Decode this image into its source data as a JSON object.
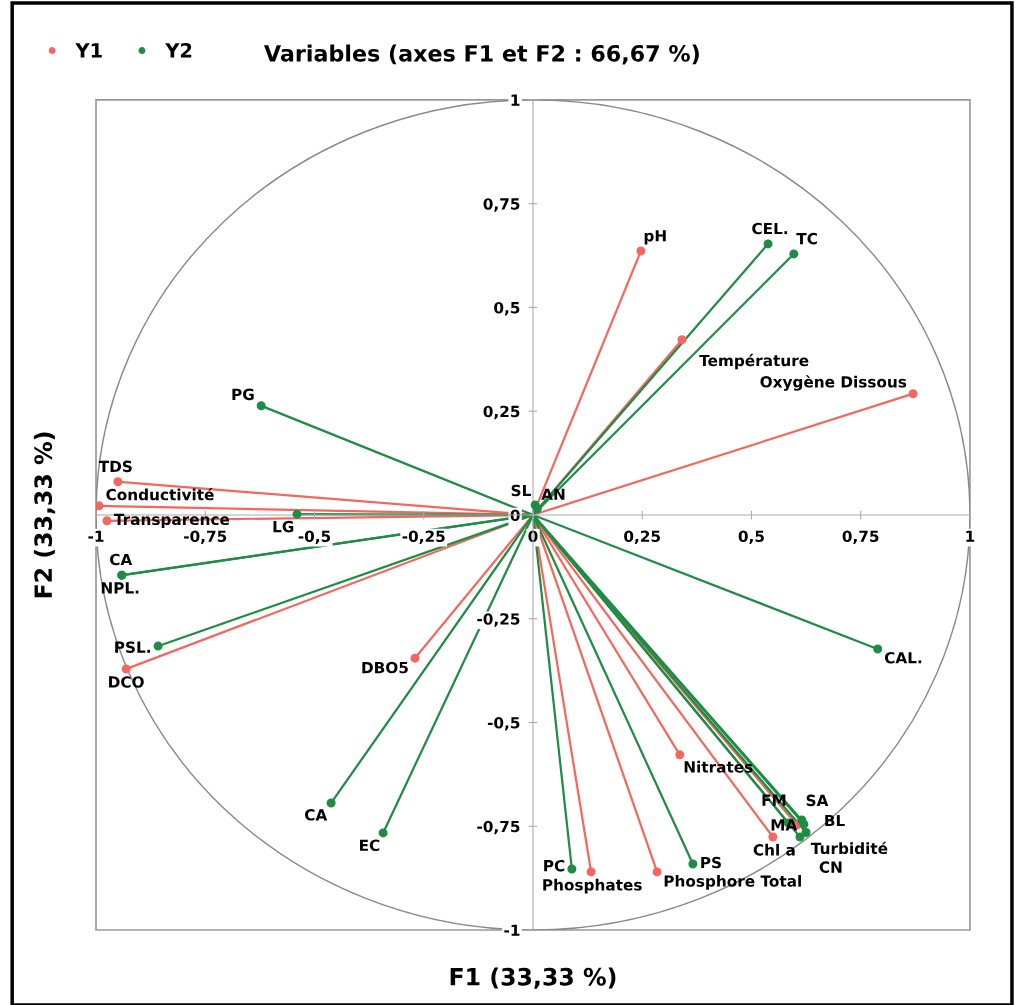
{
  "chart_data": {
    "type": "scatter",
    "title": "Variables (axes F1 et F2 : 66,67 %)",
    "xlabel": "F1 (33,33 %)",
    "ylabel": "F2 (33,33 %)",
    "xlim": [
      -1,
      1
    ],
    "ylim": [
      -1,
      1
    ],
    "xticks": [
      {
        "value": -1,
        "label": "-1"
      },
      {
        "value": -0.75,
        "label": "-0,75"
      },
      {
        "value": -0.5,
        "label": "-0,5"
      },
      {
        "value": -0.25,
        "label": "-0,25"
      },
      {
        "value": 0,
        "label": "0"
      },
      {
        "value": 0.25,
        "label": "0,25"
      },
      {
        "value": 0.5,
        "label": "0,5"
      },
      {
        "value": 0.75,
        "label": "0,75"
      },
      {
        "value": 1,
        "label": "1"
      }
    ],
    "yticks": [
      {
        "value": -1,
        "label": "-1"
      },
      {
        "value": -0.75,
        "label": "-0,75"
      },
      {
        "value": -0.5,
        "label": "-0,5"
      },
      {
        "value": -0.25,
        "label": "-0,25"
      },
      {
        "value": 0,
        "label": "0"
      },
      {
        "value": 0.25,
        "label": "0,25"
      },
      {
        "value": 0.5,
        "label": "0,5"
      },
      {
        "value": 0.75,
        "label": "0,75"
      },
      {
        "value": 1,
        "label": "1"
      }
    ],
    "grid": false,
    "legend": "top left",
    "marker": "circle",
    "series": [
      {
        "name": "Y1",
        "color": "#f4675f",
        "x": [
          0.247,
          0.341,
          0.87,
          -0.95,
          -0.993,
          -0.975,
          -0.931,
          -0.27,
          0.336,
          0.604,
          0.549,
          0.133,
          0.284
        ],
        "values": [
          0.636,
          0.422,
          0.292,
          0.08,
          0.022,
          -0.014,
          -0.371,
          -0.345,
          -0.578,
          -0.747,
          -0.776,
          -0.86,
          -0.86
        ],
        "value_labels": [
          "pH",
          "Température",
          "Oxygène Dissous",
          "TDS",
          "Conductivité",
          "Transparence",
          "DCO",
          "DBO5",
          "Nitrates",
          "Turbidité",
          "Chl a",
          "Phosphates",
          "Phosphore Total"
        ]
      },
      {
        "name": "Y2",
        "color": "#1e8c45",
        "x": [
          0.538,
          0.597,
          -0.622,
          -0.54,
          -0.941,
          -0.941,
          -0.858,
          0.789,
          -0.462,
          -0.343,
          0.089,
          0.366,
          0.584,
          0.611,
          0.615,
          0.62,
          0.625,
          0.005,
          0.01
        ],
        "values": [
          0.653,
          0.629,
          0.263,
          0.002,
          -0.145,
          -0.145,
          -0.316,
          -0.323,
          -0.694,
          -0.766,
          -0.853,
          -0.841,
          -0.742,
          -0.776,
          -0.735,
          -0.745,
          -0.765,
          0.024,
          0.015
        ],
        "value_labels": [
          "CEL.",
          "TC",
          "PG",
          "LG",
          "NPL.",
          "CA",
          "PSL.",
          "CAL.",
          "CA",
          "EC",
          "PC",
          "PS",
          "SA",
          "CN",
          "BL",
          "MA",
          "FM",
          "SL",
          "AN"
        ]
      }
    ]
  }
}
